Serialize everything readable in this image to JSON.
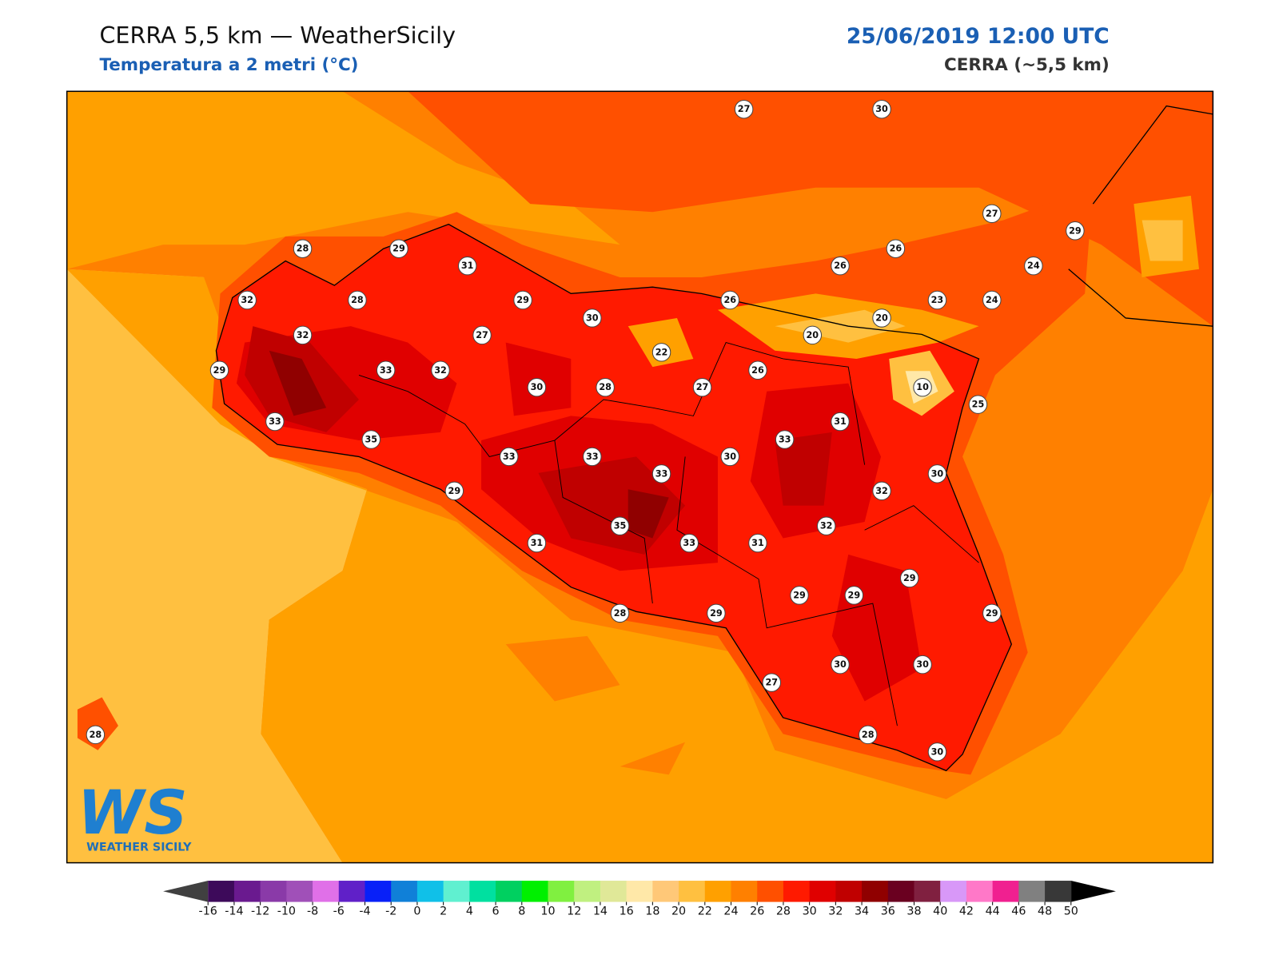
{
  "header": {
    "title": "CERRA 5,5 km — WeatherSicily",
    "subtitle": "Temperatura a 2 metri (°C)",
    "datetime": "25/06/2019 12:00 UTC",
    "model": "CERRA (~5,5 km)"
  },
  "map": {
    "stations": [
      27,
      30,
      27,
      29,
      28,
      29,
      31,
      26,
      26,
      24,
      32,
      28,
      29,
      26,
      23,
      24,
      30,
      20,
      20,
      32,
      27,
      22,
      29,
      33,
      32,
      26,
      30,
      28,
      27,
      10,
      25,
      33,
      31,
      35,
      33,
      33,
      33,
      30,
      30,
      33,
      29,
      32,
      35,
      32,
      31,
      33,
      31,
      29,
      29,
      29,
      28,
      29,
      29,
      30,
      30,
      27,
      28,
      28,
      30
    ]
  },
  "colorbar": {
    "ticks": [
      -16,
      -14,
      -12,
      -10,
      -8,
      -6,
      -4,
      -2,
      0,
      2,
      4,
      6,
      8,
      10,
      12,
      14,
      16,
      18,
      20,
      22,
      24,
      26,
      28,
      30,
      32,
      34,
      36,
      38,
      40,
      42,
      44,
      46,
      48,
      50
    ],
    "colors": [
      "#3d0a5a",
      "#6a1a8f",
      "#8a3aa8",
      "#a050b8",
      "#e070e8",
      "#6020c8",
      "#0820f8",
      "#1080d8",
      "#10c0e8",
      "#60f0d0",
      "#00e0a0",
      "#00d060",
      "#00f000",
      "#80f040",
      "#c0f080",
      "#e0e898",
      "#ffe8a8",
      "#ffc878",
      "#ffc040",
      "#ffa000",
      "#ff8000",
      "#ff5000",
      "#ff1a00",
      "#e00000",
      "#c00000",
      "#900000",
      "#6a0020",
      "#802040",
      "#d898f8",
      "#ff78c8",
      "#f02090",
      "#808080",
      "#383838"
    ],
    "extend_colors": [
      "#404040",
      "#000000"
    ]
  },
  "logo": {
    "mark": "WS",
    "text": "WEATHER SICILY"
  }
}
